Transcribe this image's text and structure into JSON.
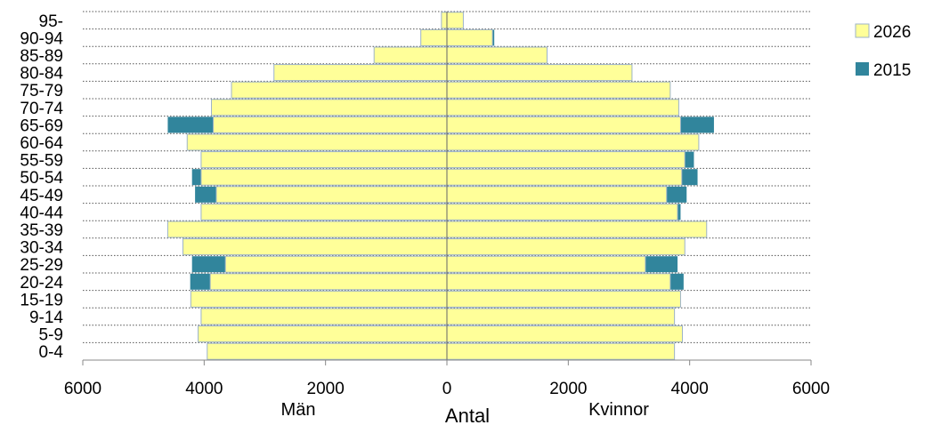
{
  "chart_data": {
    "type": "bar",
    "orientation": "horizontal-population-pyramid",
    "categories": [
      "0-4",
      "5-9",
      "9-14",
      "15-19",
      "20-24",
      "25-29",
      "30-34",
      "35-39",
      "40-44",
      "45-49",
      "50-54",
      "55-59",
      "60-64",
      "65-69",
      "70-74",
      "75-79",
      "80-84",
      "85-89",
      "90-94",
      "95-"
    ],
    "series": [
      {
        "name": "2026",
        "color": "#ffff99",
        "men": [
          3950,
          4100,
          4050,
          4220,
          3900,
          3650,
          4350,
          4600,
          4050,
          3800,
          4050,
          4050,
          4280,
          3850,
          3880,
          3550,
          2850,
          1200,
          430,
          90
        ],
        "women": [
          3750,
          3880,
          3750,
          3850,
          3680,
          3270,
          3920,
          4280,
          3800,
          3620,
          3870,
          3920,
          4150,
          3850,
          3820,
          3680,
          3050,
          1650,
          750,
          270
        ]
      },
      {
        "name": "2015",
        "color": "#31859c",
        "men": [
          3920,
          4080,
          4020,
          4200,
          4230,
          4200,
          4330,
          4580,
          4030,
          4150,
          4200,
          4000,
          4270,
          4600,
          3870,
          3530,
          2830,
          1180,
          420,
          80
        ],
        "women": [
          3720,
          3860,
          3720,
          3830,
          3900,
          3800,
          3900,
          4260,
          3850,
          3950,
          4130,
          4070,
          4130,
          4400,
          3800,
          3650,
          3030,
          1630,
          780,
          260
        ]
      }
    ],
    "xlim": [
      -6000,
      6000
    ],
    "xticks": [
      -6000,
      -4000,
      -2000,
      0,
      2000,
      4000,
      6000
    ],
    "xtick_labels": [
      "6000",
      "4000",
      "2000",
      "0",
      "2000",
      "4000",
      "6000"
    ],
    "xlabel": "Antal",
    "left_label": "Män",
    "right_label": "Kvinnor",
    "legend": [
      "2026",
      "2015"
    ],
    "legend_position": "top-right",
    "grid": "horizontal-dotted"
  }
}
